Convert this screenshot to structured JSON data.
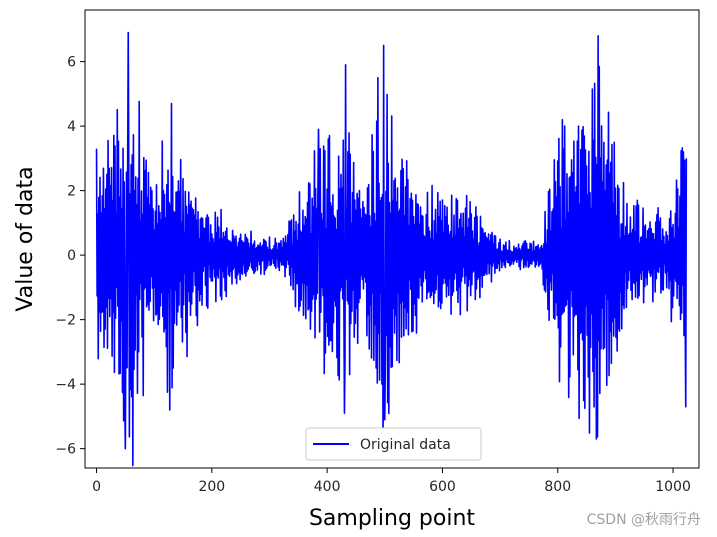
{
  "chart_data": {
    "type": "line",
    "title": "",
    "xlabel": "Sampling point",
    "ylabel": "Value of data",
    "xlim": [
      -20,
      1045
    ],
    "ylim": [
      -6.6,
      7.6
    ],
    "xticks": [
      0,
      200,
      400,
      600,
      800,
      1000
    ],
    "yticks": [
      -6,
      -4,
      -2,
      0,
      2,
      4,
      6
    ],
    "ytick_labels": [
      "−6",
      "−4",
      "−2",
      "0",
      "2",
      "4",
      "6"
    ],
    "grid": false,
    "legend_position": "lower center",
    "series": [
      {
        "name": "Original data",
        "color": "#0000ff",
        "length": 1024,
        "y_start": 3.3,
        "y_end": 3.0,
        "envelope": [
          {
            "x": 0,
            "amp": 3.2
          },
          {
            "x": 60,
            "amp": 7.0
          },
          {
            "x": 100,
            "amp": 2.6
          },
          {
            "x": 130,
            "amp": 4.8
          },
          {
            "x": 170,
            "amp": 2.4
          },
          {
            "x": 240,
            "amp": 1.0
          },
          {
            "x": 320,
            "amp": 0.5
          },
          {
            "x": 380,
            "amp": 3.4
          },
          {
            "x": 430,
            "amp": 5.2
          },
          {
            "x": 460,
            "amp": 2.2
          },
          {
            "x": 495,
            "amp": 6.4
          },
          {
            "x": 560,
            "amp": 2.2
          },
          {
            "x": 640,
            "amp": 2.2
          },
          {
            "x": 700,
            "amp": 0.5
          },
          {
            "x": 770,
            "amp": 0.5
          },
          {
            "x": 800,
            "amp": 4.0
          },
          {
            "x": 870,
            "amp": 6.8
          },
          {
            "x": 920,
            "amp": 2.0
          },
          {
            "x": 990,
            "amp": 1.6
          },
          {
            "x": 1020,
            "amp": 4.5
          }
        ],
        "peaks": [
          {
            "x": 55,
            "y": 6.9
          },
          {
            "x": 50,
            "y": -6.0
          },
          {
            "x": 130,
            "y": 4.7
          },
          {
            "x": 127,
            "y": -4.8
          },
          {
            "x": 385,
            "y": 3.9
          },
          {
            "x": 430,
            "y": -4.9
          },
          {
            "x": 432,
            "y": 5.9
          },
          {
            "x": 498,
            "y": 6.5
          },
          {
            "x": 500,
            "y": -5.1
          },
          {
            "x": 870,
            "y": 6.8
          },
          {
            "x": 867,
            "y": -5.7
          },
          {
            "x": 808,
            "y": 4.2
          },
          {
            "x": 1022,
            "y": -4.7
          },
          {
            "x": 1018,
            "y": 3.2
          }
        ]
      }
    ]
  },
  "watermark": "CSDN @秋雨行舟"
}
